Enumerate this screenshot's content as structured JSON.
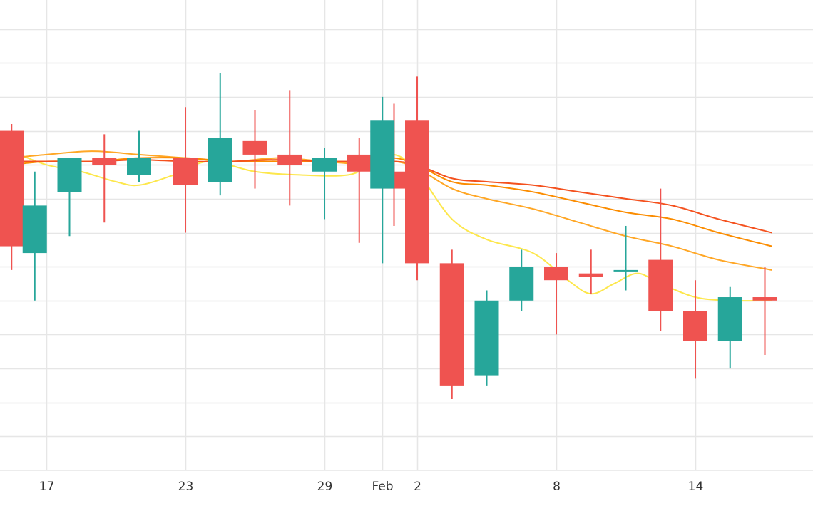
{
  "chart_data": {
    "type": "candlestick",
    "colors": {
      "up": "#26a69a",
      "down": "#ef5350",
      "ma_short": "#fde74c",
      "ma_medium": "#ffa726",
      "ma_long": "#fb8c00",
      "ma_longest": "#f4511e",
      "grid": "#e6e6e6"
    },
    "x_ticks": [
      {
        "day": 17,
        "label": "17"
      },
      {
        "day": 23,
        "label": "23"
      },
      {
        "day": 29,
        "label": "29"
      },
      {
        "day": 31.5,
        "label": "Feb"
      },
      {
        "day": 33,
        "label": "2"
      },
      {
        "day": 39,
        "label": "8"
      },
      {
        "day": 45,
        "label": "14"
      }
    ],
    "x_range": [
      15,
      48.3
    ],
    "y_range": [
      0,
      14
    ],
    "y_grid": [
      1,
      2,
      3,
      4,
      5,
      6,
      7,
      8,
      9,
      10,
      11,
      12,
      13
    ],
    "candles": [
      {
        "day": 15.5,
        "open": 10.0,
        "high": 10.2,
        "low": 5.9,
        "close": 6.6
      },
      {
        "day": 16.5,
        "open": 6.4,
        "high": 8.8,
        "low": 5.0,
        "close": 7.8
      },
      {
        "day": 18,
        "open": 8.2,
        "high": 9.2,
        "low": 6.9,
        "close": 9.2
      },
      {
        "day": 19.5,
        "open": 9.2,
        "high": 9.9,
        "low": 7.3,
        "close": 9.0
      },
      {
        "day": 21,
        "open": 8.7,
        "high": 10.0,
        "low": 8.5,
        "close": 9.2
      },
      {
        "day": 23,
        "open": 9.2,
        "high": 10.7,
        "low": 7.0,
        "close": 8.4
      },
      {
        "day": 24.5,
        "open": 8.5,
        "high": 11.7,
        "low": 8.1,
        "close": 9.8
      },
      {
        "day": 26,
        "open": 9.7,
        "high": 10.6,
        "low": 8.3,
        "close": 9.3
      },
      {
        "day": 27.5,
        "open": 9.3,
        "high": 11.2,
        "low": 7.8,
        "close": 9.0
      },
      {
        "day": 29,
        "open": 8.8,
        "high": 9.5,
        "low": 7.4,
        "close": 9.2
      },
      {
        "day": 30.5,
        "open": 9.3,
        "high": 9.8,
        "low": 6.7,
        "close": 8.8
      },
      {
        "day": 32,
        "open": 8.8,
        "high": 10.8,
        "low": 7.2,
        "close": 8.3
      },
      {
        "day": 31.5,
        "open": 8.3,
        "high": 11.0,
        "low": 6.1,
        "close": 10.3
      },
      {
        "day": 33,
        "open": 10.3,
        "high": 11.6,
        "low": 5.6,
        "close": 6.1
      },
      {
        "day": 34.5,
        "open": 6.1,
        "high": 6.5,
        "low": 2.1,
        "close": 2.5
      },
      {
        "day": 36,
        "open": 2.8,
        "high": 5.3,
        "low": 2.5,
        "close": 5.0
      },
      {
        "day": 37.5,
        "open": 5.0,
        "high": 6.5,
        "low": 4.7,
        "close": 6.0
      },
      {
        "day": 39,
        "open": 6.0,
        "high": 6.4,
        "low": 4.0,
        "close": 5.6
      },
      {
        "day": 40.5,
        "open": 5.8,
        "high": 6.5,
        "low": 5.2,
        "close": 5.7
      },
      {
        "day": 42,
        "open": 5.9,
        "high": 7.2,
        "low": 5.3,
        "close": 5.9
      },
      {
        "day": 43.5,
        "open": 6.2,
        "high": 8.3,
        "low": 4.1,
        "close": 4.7
      },
      {
        "day": 45,
        "open": 4.7,
        "high": 5.6,
        "low": 2.7,
        "close": 3.8
      },
      {
        "day": 46.5,
        "open": 3.8,
        "high": 5.4,
        "low": 3.0,
        "close": 5.1
      },
      {
        "day": 48,
        "open": 5.1,
        "high": 6.0,
        "low": 3.4,
        "close": 5.0
      }
    ],
    "moving_averages": [
      {
        "color_key": "ma_short",
        "values": [
          [
            15.5,
            9.4
          ],
          [
            17,
            9.0
          ],
          [
            18.5,
            8.8
          ],
          [
            20,
            8.5
          ],
          [
            21,
            8.4
          ],
          [
            22.5,
            8.7
          ],
          [
            24,
            9.1
          ],
          [
            26,
            8.8
          ],
          [
            28,
            8.7
          ],
          [
            30,
            8.7
          ],
          [
            31,
            9.0
          ],
          [
            32,
            9.3
          ],
          [
            33,
            8.8
          ],
          [
            34.5,
            7.4
          ],
          [
            36,
            6.8
          ],
          [
            38,
            6.4
          ],
          [
            39.5,
            5.6
          ],
          [
            40.5,
            5.2
          ],
          [
            41.5,
            5.5
          ],
          [
            42.5,
            5.8
          ],
          [
            43.5,
            5.5
          ],
          [
            45,
            5.1
          ],
          [
            46.5,
            5.0
          ],
          [
            48.3,
            5.0
          ]
        ]
      },
      {
        "color_key": "ma_medium",
        "values": [
          [
            15.5,
            9.2
          ],
          [
            17,
            9.3
          ],
          [
            19,
            9.4
          ],
          [
            21,
            9.3
          ],
          [
            23,
            9.2
          ],
          [
            25,
            9.1
          ],
          [
            27,
            9.2
          ],
          [
            29,
            9.1
          ],
          [
            31,
            9.0
          ],
          [
            32,
            9.1
          ],
          [
            33,
            8.9
          ],
          [
            34.5,
            8.3
          ],
          [
            36,
            8.0
          ],
          [
            38,
            7.7
          ],
          [
            40,
            7.3
          ],
          [
            42,
            6.9
          ],
          [
            44,
            6.6
          ],
          [
            46,
            6.2
          ],
          [
            48.3,
            5.9
          ]
        ]
      },
      {
        "color_key": "ma_long",
        "values": [
          [
            15.5,
            9.0
          ],
          [
            17,
            9.1
          ],
          [
            19,
            9.1
          ],
          [
            21,
            9.2
          ],
          [
            23,
            9.2
          ],
          [
            25,
            9.1
          ],
          [
            27,
            9.1
          ],
          [
            29,
            9.1
          ],
          [
            31,
            9.1
          ],
          [
            32,
            9.2
          ],
          [
            33,
            9.0
          ],
          [
            34.5,
            8.5
          ],
          [
            36,
            8.4
          ],
          [
            38,
            8.2
          ],
          [
            40,
            7.9
          ],
          [
            42,
            7.6
          ],
          [
            44,
            7.4
          ],
          [
            46,
            7.0
          ],
          [
            48.3,
            6.6
          ]
        ]
      },
      {
        "color_key": "ma_longest",
        "values": [
          [
            15.5,
            9.1
          ],
          [
            17,
            9.1
          ],
          [
            19,
            9.1
          ],
          [
            21,
            9.15
          ],
          [
            23,
            9.1
          ],
          [
            25,
            9.1
          ],
          [
            27,
            9.15
          ],
          [
            29,
            9.1
          ],
          [
            31,
            9.1
          ],
          [
            32,
            9.1
          ],
          [
            33,
            9.0
          ],
          [
            34.5,
            8.6
          ],
          [
            36,
            8.5
          ],
          [
            38,
            8.4
          ],
          [
            40,
            8.2
          ],
          [
            42,
            8.0
          ],
          [
            44,
            7.8
          ],
          [
            46,
            7.4
          ],
          [
            48.3,
            7.0
          ]
        ]
      }
    ]
  }
}
